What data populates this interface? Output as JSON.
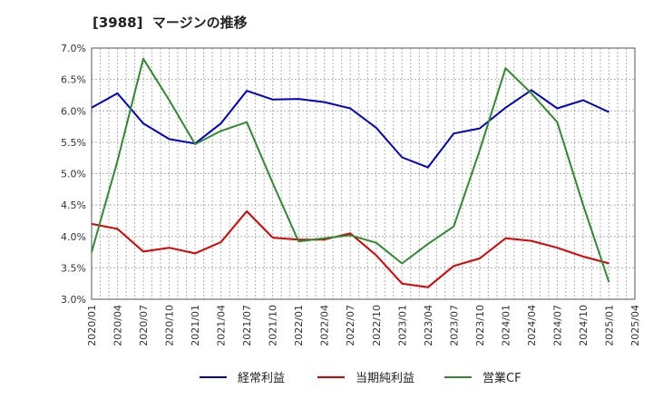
{
  "chart_data": {
    "type": "line",
    "title": "[3988]  マージンの推移",
    "xlabel": "",
    "ylabel": "",
    "ylim": [
      3.0,
      7.0
    ],
    "yticks": [
      "3.0%",
      "3.5%",
      "4.0%",
      "4.5%",
      "5.0%",
      "5.5%",
      "6.0%",
      "6.5%",
      "7.0%"
    ],
    "x": [
      "2020/01",
      "2020/04",
      "2020/07",
      "2020/10",
      "2021/01",
      "2021/04",
      "2021/07",
      "2021/10",
      "2022/01",
      "2022/04",
      "2022/07",
      "2022/10",
      "2023/01",
      "2023/04",
      "2023/07",
      "2023/10",
      "2024/01",
      "2024/04",
      "2024/07",
      "2024/10",
      "2025/01",
      "2025/04"
    ],
    "grid": true,
    "legend_position": "bottom",
    "series": [
      {
        "name": "経常利益",
        "color": "#0000cc",
        "values": [
          6.05,
          6.28,
          5.8,
          5.55,
          5.48,
          5.8,
          6.32,
          6.18,
          6.19,
          6.14,
          6.04,
          5.73,
          5.26,
          5.1,
          5.64,
          5.72,
          6.05,
          6.33,
          6.04,
          6.17,
          5.98,
          null
        ]
      },
      {
        "name": "当期純利益",
        "color": "#dd0000",
        "values": [
          4.2,
          4.12,
          3.76,
          3.82,
          3.73,
          3.91,
          4.4,
          3.98,
          3.95,
          3.95,
          4.05,
          3.7,
          3.25,
          3.19,
          3.53,
          3.65,
          3.97,
          3.93,
          3.82,
          3.68,
          3.57,
          null
        ]
      },
      {
        "name": "営業CF",
        "color": "#2e8b2e",
        "values": [
          3.75,
          5.2,
          6.83,
          6.17,
          5.47,
          5.68,
          5.82,
          4.85,
          3.92,
          3.97,
          4.02,
          3.9,
          3.57,
          3.88,
          4.16,
          5.37,
          6.68,
          6.28,
          5.82,
          4.5,
          3.27,
          null
        ]
      }
    ]
  }
}
